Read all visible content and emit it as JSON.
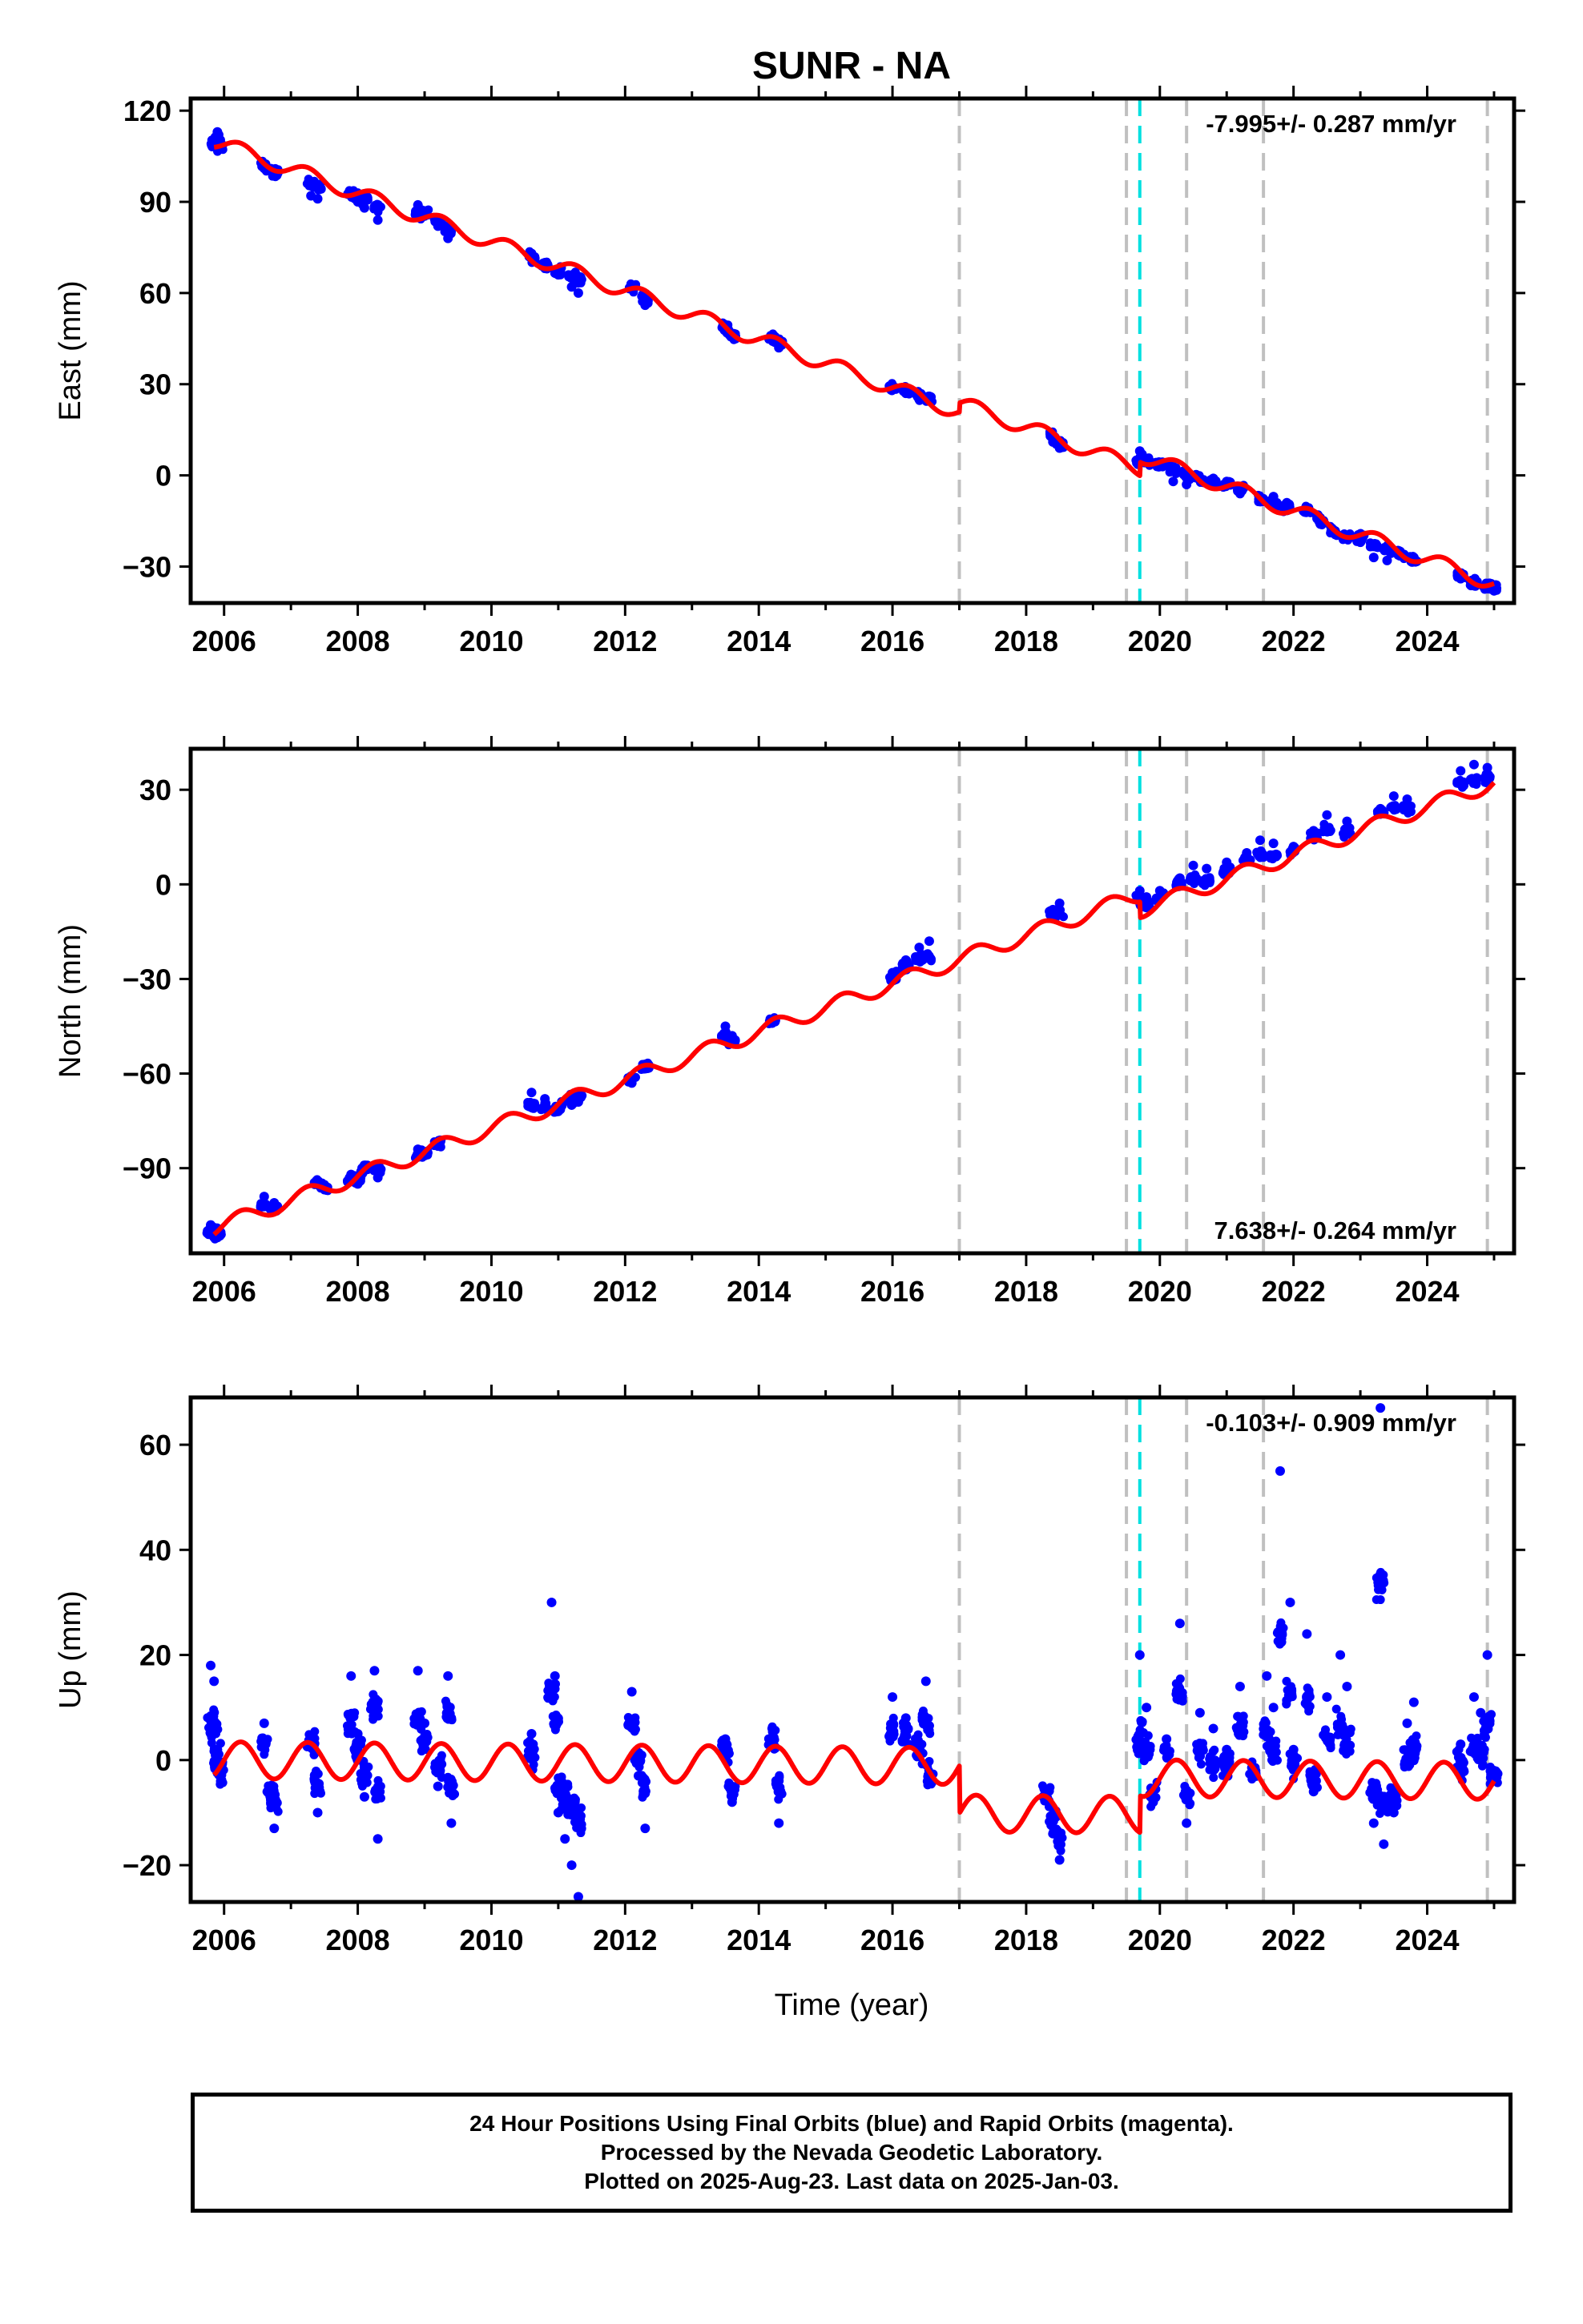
{
  "chart_data": {
    "type": "scatter",
    "title": "SUNR - NA",
    "xlabel": "Time (year)",
    "xlim": [
      2005.5,
      2025.3
    ],
    "x_ticks": [
      "2006",
      "2008",
      "2010",
      "2012",
      "2014",
      "2016",
      "2018",
      "2020",
      "2022",
      "2024"
    ],
    "x_tick_values": [
      2006,
      2008,
      2010,
      2012,
      2014,
      2016,
      2018,
      2020,
      2022,
      2024
    ],
    "grid": false,
    "colors": {
      "final_orbits": "#0000ff",
      "model": "#ff0000",
      "equipment_change": "#c0c0c0",
      "earthquake": "#00e0e0",
      "frame": "#000000"
    },
    "vertical_markers": {
      "gray": [
        2017.0,
        2019.5,
        2020.4,
        2021.55,
        2024.9
      ],
      "cyan": [
        2019.7
      ]
    },
    "panels": [
      {
        "name": "east",
        "ylabel": "East (mm)",
        "ylim": [
          -42,
          124
        ],
        "y_ticks": [
          "120",
          "90",
          "60",
          "30",
          "0",
          "-30"
        ],
        "y_tick_values": [
          120,
          90,
          60,
          30,
          0,
          -30
        ],
        "rate": "-7.995+/- 0.287 mm/yr",
        "rate_position": "top-right",
        "trend": {
          "t0": 2005.85,
          "y0": 110,
          "slope": -7.995,
          "season_amp": 2.5,
          "offsets": [
            [
              2017.0,
              3
            ],
            [
              2019.7,
              4.5
            ]
          ]
        },
        "series": [
          {
            "name": "Final Orbits",
            "points": [
              [
                2005.85,
                110
              ],
              [
                2005.9,
                113
              ],
              [
                2005.95,
                108
              ],
              [
                2006.6,
                101
              ],
              [
                2006.75,
                99
              ],
              [
                2007.3,
                92
              ],
              [
                2007.4,
                91
              ],
              [
                2007.9,
                93
              ],
              [
                2008.0,
                90
              ],
              [
                2008.1,
                88
              ],
              [
                2008.3,
                84
              ],
              [
                2008.9,
                89
              ],
              [
                2009.0,
                87
              ],
              [
                2009.2,
                82
              ],
              [
                2009.35,
                78
              ],
              [
                2010.6,
                73
              ],
              [
                2010.8,
                70
              ],
              [
                2011.0,
                66
              ],
              [
                2011.2,
                62
              ],
              [
                2011.3,
                60
              ],
              [
                2012.1,
                62
              ],
              [
                2012.3,
                56
              ],
              [
                2013.5,
                48
              ],
              [
                2013.6,
                46
              ],
              [
                2014.2,
                45
              ],
              [
                2014.3,
                42
              ],
              [
                2016.0,
                29
              ],
              [
                2016.2,
                27
              ],
              [
                2016.4,
                25
              ],
              [
                2016.55,
                26
              ],
              [
                2018.4,
                11
              ],
              [
                2018.5,
                9
              ],
              [
                2019.7,
                8
              ],
              [
                2019.8,
                5
              ],
              [
                2020.0,
                3
              ],
              [
                2020.2,
                -2
              ],
              [
                2020.4,
                -3
              ],
              [
                2020.6,
                -1
              ],
              [
                2020.8,
                -1
              ],
              [
                2021.0,
                -2
              ],
              [
                2021.2,
                -6
              ],
              [
                2021.5,
                -8
              ],
              [
                2021.7,
                -7
              ],
              [
                2021.9,
                -9
              ],
              [
                2022.2,
                -12
              ],
              [
                2022.4,
                -16
              ],
              [
                2022.6,
                -19
              ],
              [
                2022.8,
                -20
              ],
              [
                2023.0,
                -22
              ],
              [
                2023.2,
                -27
              ],
              [
                2023.4,
                -28
              ],
              [
                2023.6,
                -26
              ],
              [
                2023.8,
                -27
              ],
              [
                2024.5,
                -34
              ],
              [
                2024.7,
                -35
              ],
              [
                2024.9,
                -37
              ],
              [
                2025.0,
                -38
              ]
            ]
          }
        ]
      },
      {
        "name": "north",
        "ylabel": "North (mm)",
        "ylim": [
          -117,
          43
        ],
        "y_ticks": [
          "30",
          "0",
          "-30",
          "-60",
          "-90"
        ],
        "y_tick_values": [
          30,
          0,
          -30,
          -60,
          -90
        ],
        "rate": "7.638+/- 0.264 mm/yr",
        "rate_position": "bottom-right",
        "trend": {
          "t0": 2005.85,
          "y0": -109,
          "slope": 7.638,
          "season_amp": 2.5,
          "offsets": [
            [
              2019.7,
              -5
            ]
          ]
        },
        "series": [
          {
            "name": "Final Orbits",
            "points": [
              [
                2005.8,
                -108
              ],
              [
                2005.85,
                -110
              ],
              [
                2005.9,
                -112
              ],
              [
                2006.6,
                -99
              ],
              [
                2006.75,
                -101
              ],
              [
                2007.4,
                -94
              ],
              [
                2007.5,
                -96
              ],
              [
                2007.9,
                -92
              ],
              [
                2008.0,
                -95
              ],
              [
                2008.1,
                -90
              ],
              [
                2008.3,
                -93
              ],
              [
                2008.9,
                -84
              ],
              [
                2009.0,
                -86
              ],
              [
                2009.2,
                -83
              ],
              [
                2010.6,
                -66
              ],
              [
                2010.8,
                -68
              ],
              [
                2011.0,
                -72
              ],
              [
                2011.2,
                -70
              ],
              [
                2011.3,
                -69
              ],
              [
                2012.1,
                -63
              ],
              [
                2012.3,
                -58
              ],
              [
                2013.5,
                -45
              ],
              [
                2013.6,
                -48
              ],
              [
                2014.2,
                -44
              ],
              [
                2016.0,
                -28
              ],
              [
                2016.2,
                -24
              ],
              [
                2016.4,
                -20
              ],
              [
                2016.55,
                -18
              ],
              [
                2018.4,
                -8
              ],
              [
                2018.5,
                -6
              ],
              [
                2019.7,
                -2
              ],
              [
                2019.8,
                -4
              ],
              [
                2020.0,
                -2
              ],
              [
                2020.3,
                2
              ],
              [
                2020.5,
                6
              ],
              [
                2020.7,
                5
              ],
              [
                2021.0,
                7
              ],
              [
                2021.3,
                10
              ],
              [
                2021.5,
                14
              ],
              [
                2021.7,
                13
              ],
              [
                2022.0,
                12
              ],
              [
                2022.3,
                17
              ],
              [
                2022.5,
                22
              ],
              [
                2022.8,
                20
              ],
              [
                2023.3,
                24
              ],
              [
                2023.5,
                28
              ],
              [
                2023.7,
                27
              ],
              [
                2024.5,
                36
              ],
              [
                2024.7,
                38
              ],
              [
                2024.9,
                37
              ]
            ]
          }
        ]
      },
      {
        "name": "up",
        "ylabel": "Up (mm)",
        "ylim": [
          -27,
          69
        ],
        "y_ticks": [
          "60",
          "40",
          "20",
          "0",
          "-20"
        ],
        "y_tick_values": [
          60,
          40,
          20,
          0,
          -20
        ],
        "rate": "-0.103+/- 0.909 mm/yr",
        "rate_position": "top-right",
        "trend": {
          "t0": 2005.85,
          "y0": 0,
          "slope": -0.103,
          "season_amp": 3.5,
          "offsets": [
            [
              2017.0,
              -9
            ],
            [
              2019.7,
              7
            ]
          ]
        },
        "series": [
          {
            "name": "Final Orbits",
            "points": [
              [
                2005.8,
                18
              ],
              [
                2005.85,
                15
              ],
              [
                2005.9,
                2
              ],
              [
                2005.95,
                -4
              ],
              [
                2006.6,
                7
              ],
              [
                2006.7,
                -8
              ],
              [
                2006.75,
                -13
              ],
              [
                2007.3,
                3
              ],
              [
                2007.4,
                -10
              ],
              [
                2007.9,
                16
              ],
              [
                2008.0,
                5
              ],
              [
                2008.1,
                -7
              ],
              [
                2008.25,
                17
              ],
              [
                2008.3,
                -15
              ],
              [
                2008.9,
                17
              ],
              [
                2009.0,
                7
              ],
              [
                2009.2,
                -5
              ],
              [
                2009.35,
                16
              ],
              [
                2009.4,
                -12
              ],
              [
                2010.6,
                5
              ],
              [
                2010.9,
                30
              ],
              [
                2010.95,
                16
              ],
              [
                2011.0,
                -10
              ],
              [
                2011.1,
                -15
              ],
              [
                2011.2,
                -20
              ],
              [
                2011.3,
                -26
              ],
              [
                2012.1,
                13
              ],
              [
                2012.2,
                -3
              ],
              [
                2012.3,
                -13
              ],
              [
                2013.5,
                4
              ],
              [
                2013.6,
                -8
              ],
              [
                2014.2,
                6
              ],
              [
                2014.3,
                -12
              ],
              [
                2016.0,
                12
              ],
              [
                2016.2,
                8
              ],
              [
                2016.4,
                3
              ],
              [
                2016.5,
                15
              ],
              [
                2016.55,
                -4
              ],
              [
                2018.3,
                -6
              ],
              [
                2018.4,
                -14
              ],
              [
                2018.5,
                -19
              ],
              [
                2019.7,
                20
              ],
              [
                2019.8,
                10
              ],
              [
                2019.9,
                -8
              ],
              [
                2020.1,
                4
              ],
              [
                2020.3,
                26
              ],
              [
                2020.4,
                -12
              ],
              [
                2020.6,
                9
              ],
              [
                2020.8,
                6
              ],
              [
                2021.0,
                2
              ],
              [
                2021.2,
                14
              ],
              [
                2021.4,
                -3
              ],
              [
                2021.6,
                16
              ],
              [
                2021.7,
                10
              ],
              [
                2021.8,
                55
              ],
              [
                2021.95,
                30
              ],
              [
                2022.0,
                2
              ],
              [
                2022.2,
                24
              ],
              [
                2022.3,
                -6
              ],
              [
                2022.5,
                12
              ],
              [
                2022.7,
                20
              ],
              [
                2022.8,
                14
              ],
              [
                2023.2,
                -12
              ],
              [
                2023.3,
                67
              ],
              [
                2023.35,
                -16
              ],
              [
                2023.5,
                -10
              ],
              [
                2023.7,
                7
              ],
              [
                2023.8,
                11
              ],
              [
                2024.5,
                3
              ],
              [
                2024.7,
                12
              ],
              [
                2024.8,
                9
              ],
              [
                2024.9,
                20
              ],
              [
                2025.0,
                -2
              ]
            ]
          }
        ]
      }
    ]
  },
  "footer": {
    "line1": "24 Hour Positions Using Final Orbits (blue) and Rapid Orbits (magenta).",
    "line2": "Processed by the Nevada Geodetic Laboratory.",
    "line3": "Plotted on 2025-Aug-23. Last data on 2025-Jan-03."
  }
}
